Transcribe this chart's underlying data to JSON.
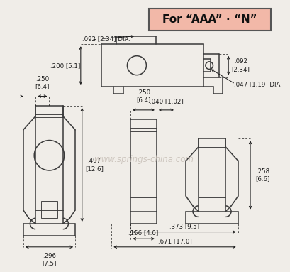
{
  "title": "For “AAA” · “N”",
  "title_bg": "#f2b8a8",
  "watermark": "www.springs-china.com",
  "line_color": "#3a3a3a",
  "dim_color": "#1a1a1a",
  "bg_color": "#f0ede8"
}
